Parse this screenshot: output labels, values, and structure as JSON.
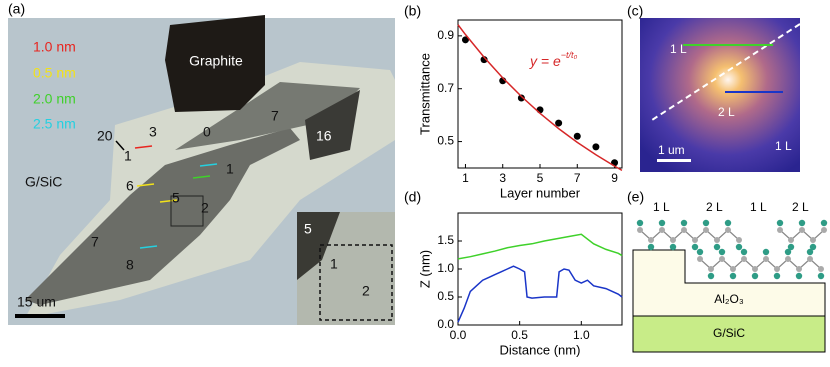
{
  "panels": [
    "(a)",
    "(b)",
    "(c)",
    "(d)",
    "(e)"
  ],
  "panel_a": {
    "legend": [
      "1.0 nm",
      "0.5 nm",
      "2.0 nm",
      "2.5 nm"
    ],
    "graphite": "Graphite",
    "substrate": "G/SiC",
    "labels": [
      "20",
      "1",
      "3",
      "0",
      "7",
      "16",
      "1",
      "6",
      "5",
      "2",
      "7",
      "8"
    ],
    "inset_labels": [
      "5",
      "1",
      "2"
    ],
    "scale": "15 um"
  },
  "panel_c": {
    "labels": [
      "1 L",
      "2 L",
      "1 L"
    ],
    "scale": "1 um"
  },
  "panel_e": {
    "layers": [
      "1 L",
      "2 L",
      "1 L",
      "2 L"
    ],
    "oxide": "Al₂O₃",
    "substrate": "G/SiC"
  },
  "chart_data": [
    {
      "type": "scatter",
      "xlabel": "Layer number",
      "ylabel": "Transmittance",
      "annotation": {
        "base": "y = e",
        "sup": "−t/t₀"
      },
      "xlim": [
        0.6,
        9.4
      ],
      "xticks": [
        1,
        3,
        5,
        7,
        9
      ],
      "ylim": [
        0.4,
        0.96
      ],
      "yticks": [
        0.5,
        0.7,
        0.9
      ],
      "series": [
        {
          "color": "#000000",
          "mode": "markers",
          "x": [
            1,
            2,
            3,
            4,
            5,
            6,
            7,
            8,
            9
          ],
          "values": [
            0.885,
            0.81,
            0.73,
            0.665,
            0.62,
            0.57,
            0.52,
            0.48,
            0.42
          ]
        },
        {
          "color": "#d62728",
          "mode": "line",
          "x": [
            0.6,
            1,
            2,
            3,
            4,
            5,
            6,
            7,
            8,
            9,
            9.4
          ],
          "values": [
            0.942,
            0.905,
            0.819,
            0.741,
            0.671,
            0.607,
            0.549,
            0.497,
            0.45,
            0.407,
            0.391
          ]
        }
      ]
    },
    {
      "type": "line",
      "xlabel": "Distance (nm)",
      "ylabel": "Z (nm)",
      "xlim": [
        0,
        1.33
      ],
      "xticks": [
        {
          "value": 0,
          "label": "0.0"
        },
        0.5,
        {
          "value": 1,
          "label": "1.0"
        }
      ],
      "ylim": [
        0,
        2.0
      ],
      "yticks": [
        {
          "value": 0,
          "label": "0.0"
        },
        0.5,
        {
          "value": 1,
          "label": "1.0"
        },
        1.5
      ],
      "series": [
        {
          "color": "#3fd12a",
          "mode": "line",
          "x": [
            0,
            0.1,
            0.2,
            0.3,
            0.4,
            0.5,
            0.6,
            0.7,
            0.8,
            0.9,
            1.0,
            1.1,
            1.2,
            1.3,
            1.33
          ],
          "values": [
            1.18,
            1.22,
            1.27,
            1.32,
            1.38,
            1.42,
            1.45,
            1.5,
            1.54,
            1.58,
            1.62,
            1.45,
            1.35,
            1.28,
            1.24
          ]
        },
        {
          "color": "#1a35c8",
          "mode": "line",
          "x": [
            0,
            0.05,
            0.1,
            0.15,
            0.2,
            0.25,
            0.3,
            0.35,
            0.4,
            0.45,
            0.5,
            0.54,
            0.56,
            0.6,
            0.7,
            0.8,
            0.82,
            0.86,
            0.9,
            0.95,
            1.0,
            1.05,
            1.1,
            1.2,
            1.3,
            1.33
          ],
          "values": [
            0.05,
            0.3,
            0.6,
            0.7,
            0.8,
            0.85,
            0.9,
            0.95,
            1.0,
            1.05,
            1.0,
            0.95,
            0.5,
            0.48,
            0.5,
            0.5,
            0.95,
            1.0,
            0.98,
            0.8,
            0.75,
            0.8,
            0.7,
            0.65,
            0.55,
            0.5
          ]
        }
      ]
    }
  ]
}
